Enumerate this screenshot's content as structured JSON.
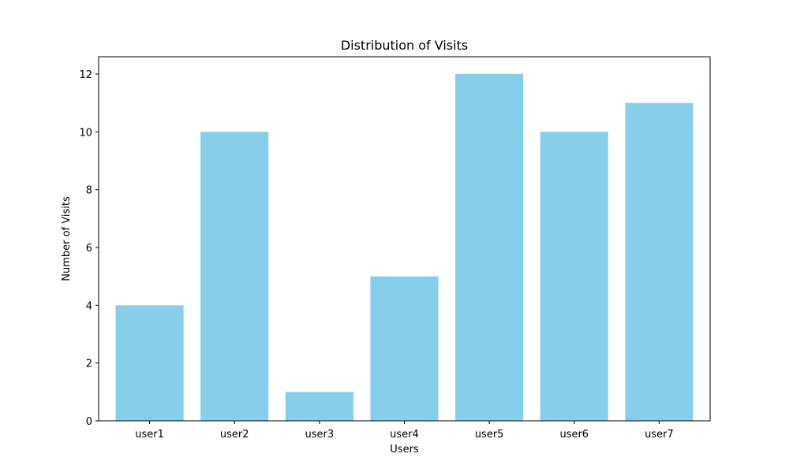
{
  "chart_data": {
    "type": "bar",
    "title": "Distribution of Visits",
    "xlabel": "Users",
    "ylabel": "Number of Visits",
    "categories": [
      "user1",
      "user2",
      "user3",
      "user4",
      "user5",
      "user6",
      "user7"
    ],
    "values": [
      4,
      10,
      1,
      5,
      12,
      10,
      11
    ],
    "ylim": [
      0,
      12.6
    ],
    "yticks": [
      0,
      2,
      4,
      6,
      8,
      10,
      12
    ],
    "bar_color": "#87CEEB",
    "grid": false,
    "legend": "none"
  }
}
